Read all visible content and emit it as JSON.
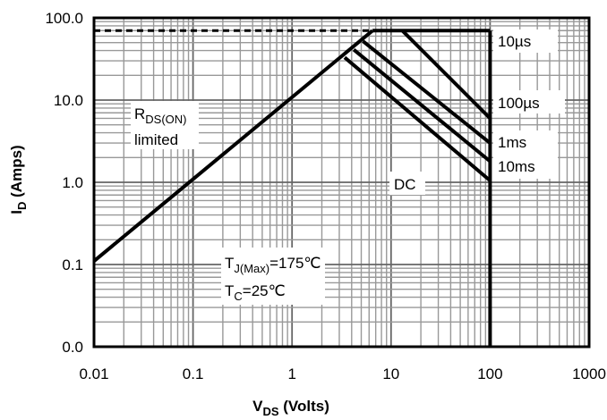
{
  "chart_data": {
    "type": "line",
    "title": "",
    "xlabel": {
      "main": "V",
      "sub": "DS",
      "rest": " (Volts)"
    },
    "ylabel": {
      "main": "I",
      "sub": "D",
      "rest": " (Amps)"
    },
    "x_scale": "log",
    "y_scale": "log",
    "xlim": [
      0.01,
      1000
    ],
    "ylim": [
      0.01,
      100
    ],
    "grid": true,
    "x_ticks": [
      {
        "v": 0.01,
        "label": "0.01"
      },
      {
        "v": 0.1,
        "label": "0.1"
      },
      {
        "v": 1,
        "label": "1"
      },
      {
        "v": 10,
        "label": "10"
      },
      {
        "v": 100,
        "label": "100"
      },
      {
        "v": 1000,
        "label": "1000"
      }
    ],
    "y_ticks": [
      {
        "v": 0.01,
        "label": "0.0"
      },
      {
        "v": 0.1,
        "label": "0.1"
      },
      {
        "v": 1,
        "label": "1.0"
      },
      {
        "v": 10,
        "label": "10.0"
      },
      {
        "v": 100,
        "label": "100.0"
      }
    ],
    "series": [
      {
        "name": "RDS(ON) limited",
        "dashed": false,
        "points": [
          [
            0.01,
            0.11
          ],
          [
            6.5,
            70
          ]
        ]
      },
      {
        "name": "10µs",
        "dashed": false,
        "points": [
          [
            6.5,
            70
          ],
          [
            100,
            70
          ]
        ]
      },
      {
        "name": "100µs",
        "dashed": false,
        "points": [
          [
            13,
            70
          ],
          [
            100,
            6
          ]
        ]
      },
      {
        "name": "1ms",
        "dashed": false,
        "points": [
          [
            5.2,
            52
          ],
          [
            100,
            3
          ]
        ]
      },
      {
        "name": "10ms",
        "dashed": false,
        "points": [
          [
            4.2,
            41
          ],
          [
            100,
            1.8
          ]
        ]
      },
      {
        "name": "DC",
        "dashed": false,
        "points": [
          [
            3.4,
            33
          ],
          [
            100,
            1.05
          ]
        ]
      },
      {
        "name": "VDS max",
        "dashed": false,
        "points": [
          [
            100,
            70
          ],
          [
            100,
            0.01
          ]
        ]
      },
      {
        "name": "ID max",
        "dashed": true,
        "points": [
          [
            0.01,
            70
          ],
          [
            6.5,
            70
          ]
        ]
      }
    ],
    "annotations": {
      "rds_main": "R",
      "rds_sub": "DS(ON)",
      "rds_line2": "limited",
      "tj_main": "T",
      "tj_sub": "J(Max)",
      "tj_rest": "=175℃",
      "tc_main": "T",
      "tc_sub": "C",
      "tc_rest": "=25℃",
      "dc": "DC",
      "t10us": "10µs",
      "t100us": "100µs",
      "t1ms": "1ms",
      "t10ms": "10ms"
    }
  }
}
